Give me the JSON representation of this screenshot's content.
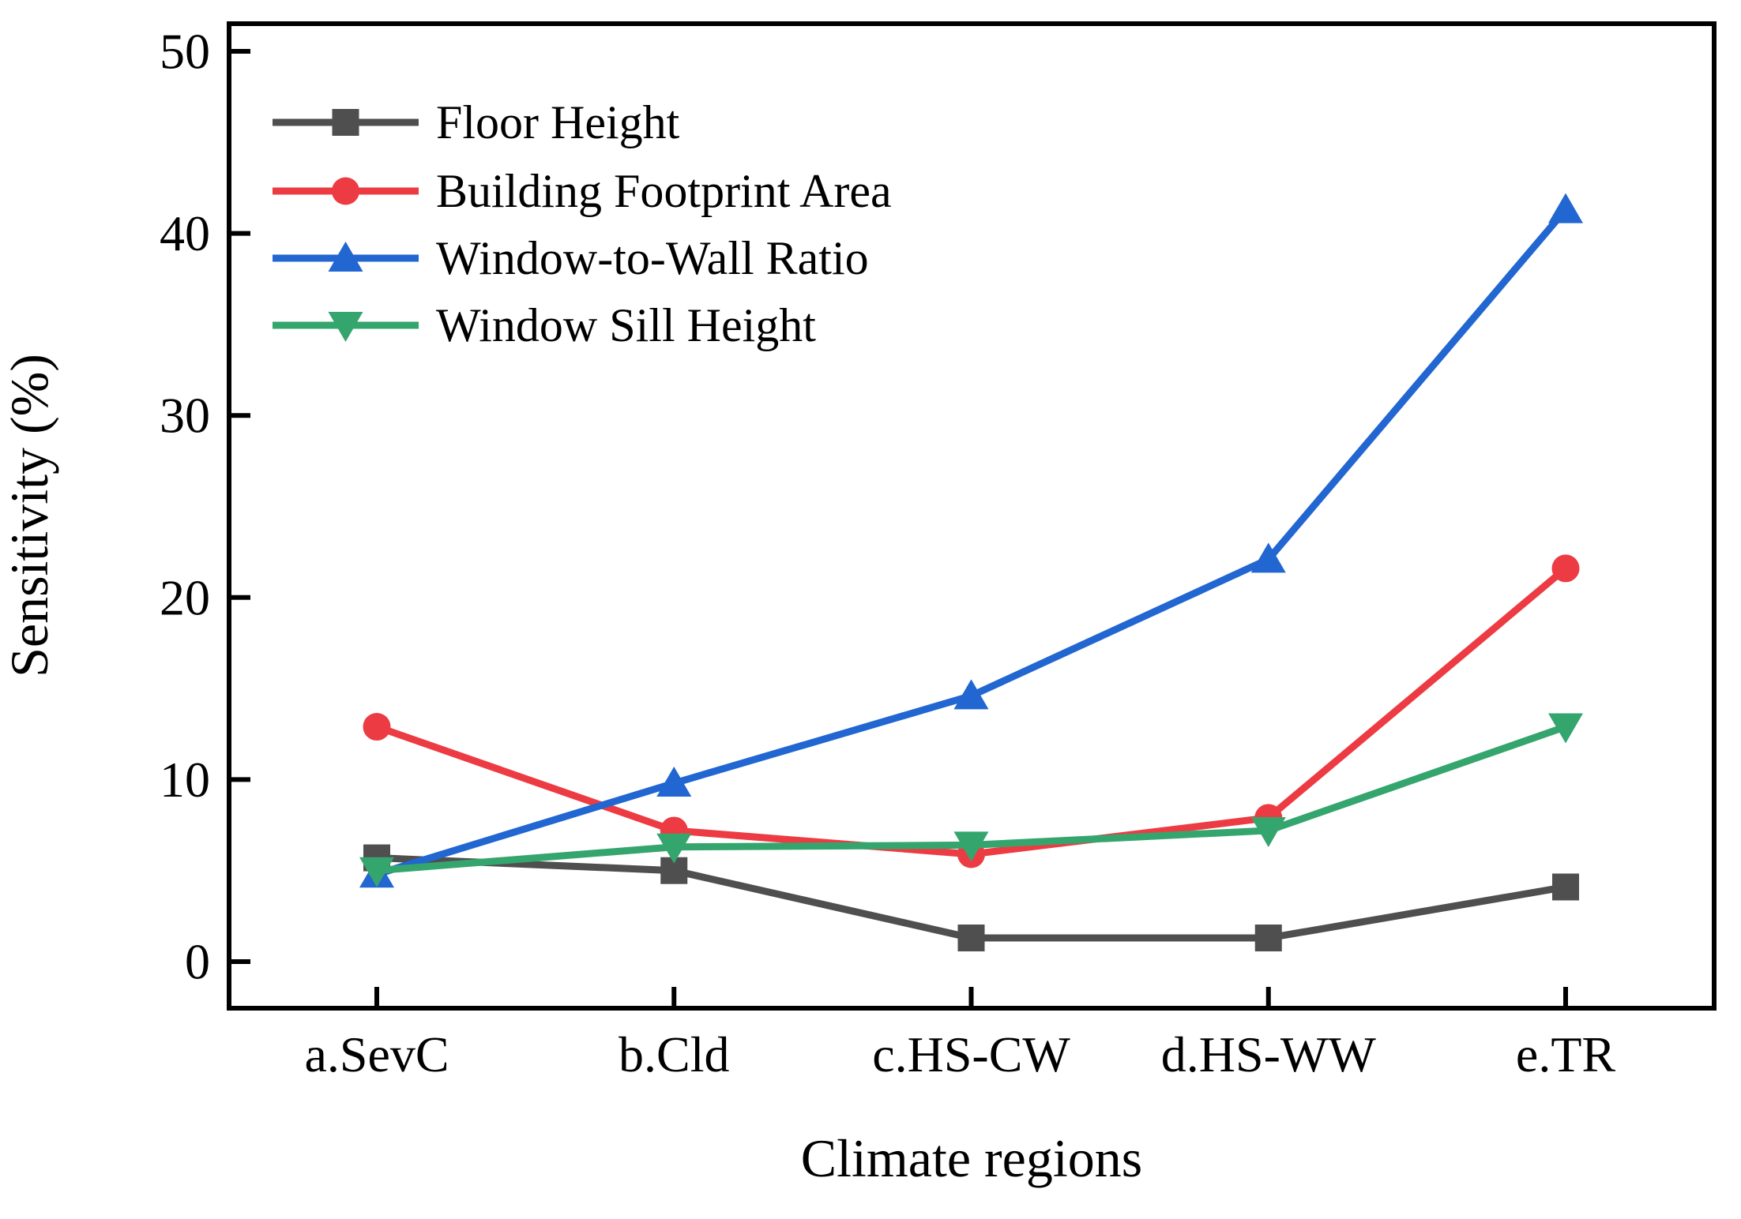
{
  "chart_data": {
    "type": "line",
    "title": "",
    "xlabel": "Climate regions",
    "ylabel": "Sensitivity (%)",
    "categories": [
      "a.SevC",
      "b.Cld",
      "c.HS-CW",
      "d.HS-WW",
      "e.TR"
    ],
    "y_ticks": [
      0,
      10,
      20,
      30,
      40,
      50
    ],
    "ylim": [
      -2.6,
      51.5
    ],
    "grid": false,
    "legend_position": "upper-left-inside",
    "axis_color": "#000000",
    "series": [
      {
        "name": "Floor Height",
        "color": "#4f4f4f",
        "marker": "square",
        "values": [
          5.7,
          5.0,
          1.3,
          1.3,
          4.1
        ]
      },
      {
        "name": "Building Footprint Area",
        "color": "#ed3b43",
        "marker": "circle",
        "values": [
          12.9,
          7.2,
          5.9,
          7.9,
          21.6
        ]
      },
      {
        "name": "Window-to-Wall Ratio",
        "color": "#2166d1",
        "marker": "triangle-up",
        "values": [
          4.8,
          9.8,
          14.6,
          22.1,
          41.3
        ]
      },
      {
        "name": "Window Sill Height",
        "color": "#35a56e",
        "marker": "triangle-down",
        "values": [
          5.0,
          6.3,
          6.4,
          7.2,
          12.9
        ]
      }
    ]
  }
}
